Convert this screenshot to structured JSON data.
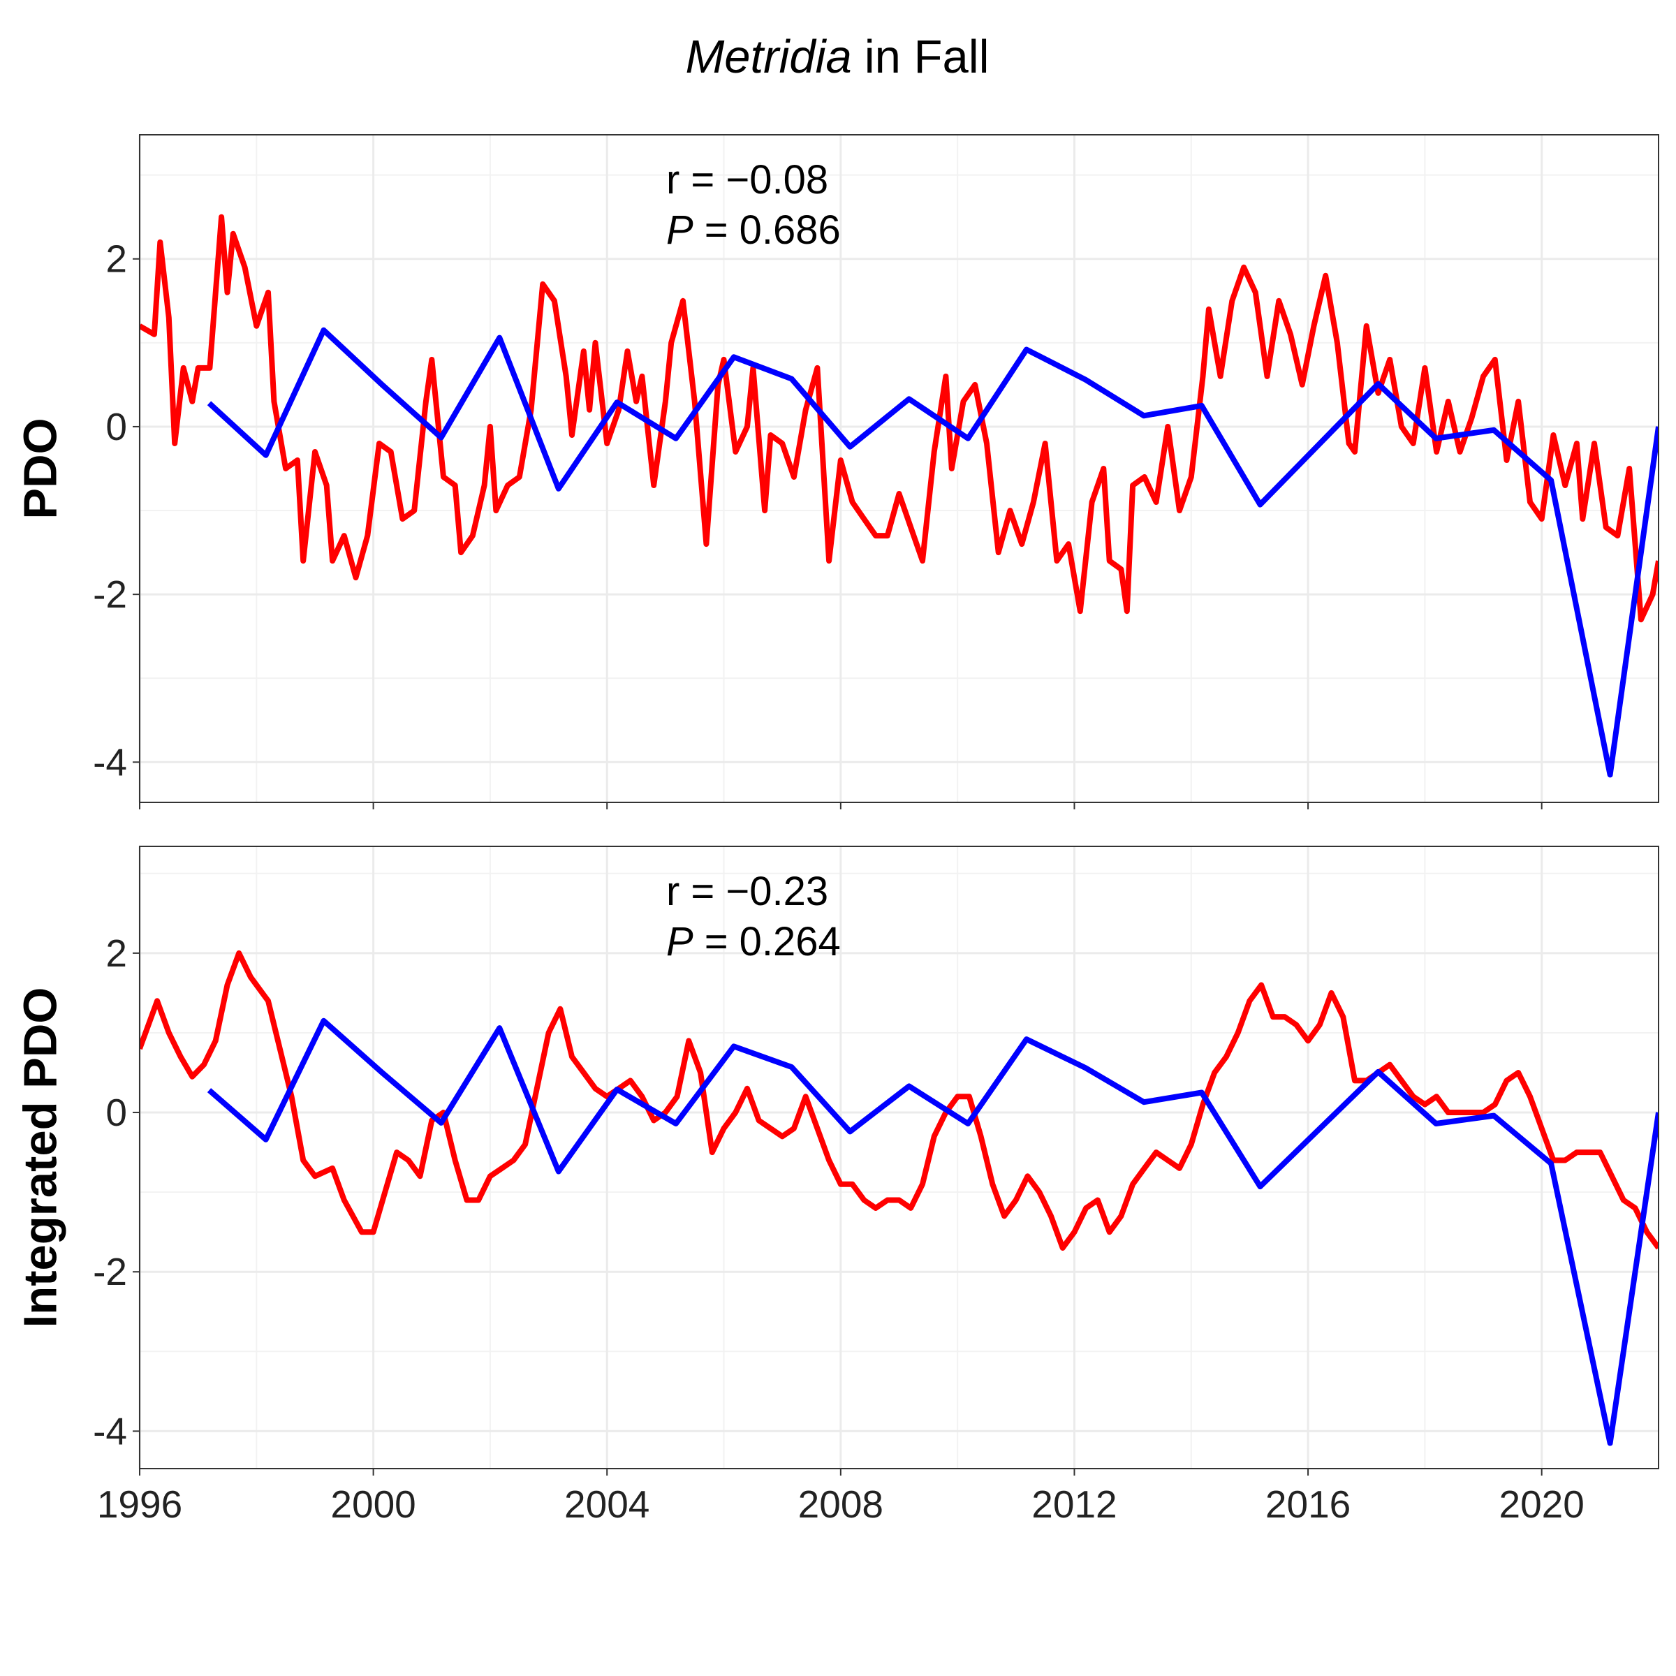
{
  "title": {
    "italic": "Metridia",
    "rest": "in Fall"
  },
  "chart_data": [
    {
      "type": "line",
      "ylabel": "PDO",
      "annotation": {
        "r": "r = −0.08",
        "p_symbol": "P",
        "p_text": "= 0.686"
      },
      "xlim": [
        1996,
        2022
      ],
      "xticks": [
        1996,
        2000,
        2004,
        2008,
        2012,
        2016,
        2020
      ],
      "xminor": [
        1998,
        2002,
        2006,
        2010,
        2014,
        2018
      ],
      "show_xtick_labels": false,
      "ylim": [
        -4.48,
        3.48
      ],
      "yticks": [
        -4,
        -2,
        0,
        2
      ],
      "yminor": [
        -3,
        -1,
        1,
        3
      ],
      "grid": true,
      "series": [
        {
          "color": "#ff0000",
          "x": [
            1996.0,
            1996.25,
            1996.35,
            1996.5,
            1996.6,
            1996.75,
            1996.9,
            1997.0,
            1997.2,
            1997.4,
            1997.5,
            1997.6,
            1997.8,
            1998.0,
            1998.2,
            1998.3,
            1998.5,
            1998.7,
            1998.8,
            1999.0,
            1999.2,
            1999.3,
            1999.5,
            1999.7,
            1999.9,
            2000.1,
            2000.3,
            2000.5,
            2000.7,
            2000.9,
            2001.0,
            2001.2,
            2001.4,
            2001.5,
            2001.7,
            2001.9,
            2002.0,
            2002.1,
            2002.3,
            2002.5,
            2002.7,
            2002.9,
            2003.1,
            2003.3,
            2003.4,
            2003.6,
            2003.7,
            2003.8,
            2004.0,
            2004.2,
            2004.35,
            2004.5,
            2004.6,
            2004.8,
            2005.0,
            2005.1,
            2005.3,
            2005.5,
            2005.7,
            2005.9,
            2006.0,
            2006.2,
            2006.4,
            2006.5,
            2006.7,
            2006.8,
            2007.0,
            2007.2,
            2007.4,
            2007.6,
            2007.8,
            2008.0,
            2008.2,
            2008.4,
            2008.6,
            2008.8,
            2009.0,
            2009.2,
            2009.4,
            2009.6,
            2009.8,
            2009.9,
            2010.1,
            2010.3,
            2010.5,
            2010.7,
            2010.9,
            2011.1,
            2011.3,
            2011.5,
            2011.7,
            2011.9,
            2012.1,
            2012.3,
            2012.5,
            2012.6,
            2012.8,
            2012.9,
            2013.0,
            2013.2,
            2013.4,
            2013.6,
            2013.8,
            2014.0,
            2014.2,
            2014.3,
            2014.5,
            2014.7,
            2014.9,
            2015.1,
            2015.3,
            2015.5,
            2015.7,
            2015.9,
            2016.1,
            2016.3,
            2016.5,
            2016.7,
            2016.8,
            2017.0,
            2017.2,
            2017.4,
            2017.6,
            2017.8,
            2018.0,
            2018.2,
            2018.4,
            2018.6,
            2018.8,
            2019.0,
            2019.2,
            2019.4,
            2019.6,
            2019.8,
            2020.0,
            2020.2,
            2020.4,
            2020.6,
            2020.7,
            2020.9,
            2021.1,
            2021.3,
            2021.5,
            2021.7,
            2021.9,
            2022.0
          ],
          "values": [
            1.2,
            1.1,
            2.2,
            1.3,
            -0.2,
            0.7,
            0.3,
            0.7,
            0.7,
            2.5,
            1.6,
            2.3,
            1.9,
            1.2,
            1.6,
            0.3,
            -0.5,
            -0.4,
            -1.6,
            -0.3,
            -0.7,
            -1.6,
            -1.3,
            -1.8,
            -1.3,
            -0.2,
            -0.3,
            -1.1,
            -1.0,
            0.3,
            0.8,
            -0.6,
            -0.7,
            -1.5,
            -1.3,
            -0.7,
            0.0,
            -1.0,
            -0.7,
            -0.6,
            0.2,
            1.7,
            1.5,
            0.6,
            -0.1,
            0.9,
            0.2,
            1.0,
            -0.2,
            0.2,
            0.9,
            0.3,
            0.6,
            -0.7,
            0.3,
            1.0,
            1.5,
            0.3,
            -1.4,
            0.5,
            0.8,
            -0.3,
            0.0,
            0.7,
            -1.0,
            -0.1,
            -0.2,
            -0.6,
            0.2,
            0.7,
            -1.6,
            -0.4,
            -0.9,
            -1.1,
            -1.3,
            -1.3,
            -0.8,
            -1.2,
            -1.6,
            -0.3,
            0.6,
            -0.5,
            0.3,
            0.5,
            -0.2,
            -1.5,
            -1.0,
            -1.4,
            -0.9,
            -0.2,
            -1.6,
            -1.4,
            -2.2,
            -0.9,
            -0.5,
            -1.6,
            -1.7,
            -2.2,
            -0.7,
            -0.6,
            -0.9,
            0.0,
            -1.0,
            -0.6,
            0.6,
            1.4,
            0.6,
            1.5,
            1.9,
            1.6,
            0.6,
            1.5,
            1.1,
            0.5,
            1.2,
            1.8,
            1.0,
            -0.2,
            -0.3,
            1.2,
            0.4,
            0.8,
            0.0,
            -0.2,
            0.7,
            -0.3,
            0.3,
            -0.3,
            0.1,
            0.6,
            0.8,
            -0.4,
            0.3,
            -0.9,
            -1.1,
            -0.1,
            -0.7,
            -0.2,
            -1.1,
            -0.2,
            -1.2,
            -1.3,
            -0.5,
            -2.3,
            -2.0,
            -1.6
          ]
        },
        {
          "color": "#0000ff",
          "x": [
            1997.19,
            1998.16,
            1999.15,
            2000.15,
            2001.16,
            2002.16,
            2003.17,
            2004.17,
            2005.18,
            2006.17,
            2007.16,
            2008.16,
            2009.17,
            2010.18,
            2011.18,
            2012.19,
            2013.19,
            2014.18,
            2015.18,
            2017.2,
            2018.19,
            2019.18,
            2020.16,
            2021.17,
            2022.0
          ],
          "values": [
            0.28,
            -0.34,
            1.15,
            0.5,
            -0.13,
            1.06,
            -0.74,
            0.29,
            -0.14,
            0.83,
            0.57,
            -0.24,
            0.33,
            -0.14,
            0.92,
            0.56,
            0.13,
            0.25,
            -0.93,
            0.51,
            -0.14,
            -0.04,
            -0.64,
            -4.15,
            0.0
          ]
        }
      ]
    },
    {
      "type": "line",
      "ylabel": "Integrated PDO",
      "annotation": {
        "r": "r = −0.23",
        "p_symbol": "P",
        "p_text": "= 0.264"
      },
      "xlim": [
        1996,
        2022
      ],
      "xticks": [
        1996,
        2000,
        2004,
        2008,
        2012,
        2016,
        2020
      ],
      "xminor": [
        1998,
        2002,
        2006,
        2010,
        2014,
        2018
      ],
      "show_xtick_labels": true,
      "ylim": [
        -4.47,
        3.34
      ],
      "yticks": [
        -4,
        -2,
        0,
        2
      ],
      "yminor": [
        -3,
        -1,
        1,
        3
      ],
      "grid": true,
      "series": [
        {
          "color": "#ff0000",
          "x": [
            1996.0,
            1996.1,
            1996.3,
            1996.5,
            1996.7,
            1996.9,
            1997.1,
            1997.3,
            1997.5,
            1997.7,
            1997.9,
            1998.2,
            1998.4,
            1998.6,
            1998.8,
            1999.0,
            1999.3,
            1999.5,
            1999.8,
            2000.0,
            2000.2,
            2000.4,
            2000.6,
            2000.8,
            2001.0,
            2001.2,
            2001.4,
            2001.6,
            2001.8,
            2002.0,
            2002.2,
            2002.4,
            2002.6,
            2002.8,
            2003.0,
            2003.2,
            2003.4,
            2003.6,
            2003.8,
            2004.0,
            2004.2,
            2004.4,
            2004.6,
            2004.8,
            2005.0,
            2005.2,
            2005.4,
            2005.6,
            2005.8,
            2006.0,
            2006.2,
            2006.4,
            2006.6,
            2006.8,
            2007.0,
            2007.2,
            2007.4,
            2007.6,
            2007.8,
            2008.0,
            2008.2,
            2008.4,
            2008.6,
            2008.8,
            2009.0,
            2009.2,
            2009.4,
            2009.6,
            2009.8,
            2010.0,
            2010.2,
            2010.4,
            2010.6,
            2010.8,
            2011.0,
            2011.2,
            2011.4,
            2011.6,
            2011.8,
            2012.0,
            2012.2,
            2012.4,
            2012.6,
            2012.8,
            2013.0,
            2013.2,
            2013.4,
            2013.6,
            2013.8,
            2014.0,
            2014.2,
            2014.4,
            2014.6,
            2014.8,
            2015.0,
            2015.2,
            2015.4,
            2015.6,
            2015.8,
            2016.0,
            2016.2,
            2016.4,
            2016.6,
            2016.8,
            2017.0,
            2017.2,
            2017.4,
            2017.6,
            2017.8,
            2018.0,
            2018.2,
            2018.4,
            2018.6,
            2018.8,
            2019.0,
            2019.2,
            2019.4,
            2019.6,
            2019.8,
            2020.0,
            2020.2,
            2020.4,
            2020.6,
            2020.8,
            2021.0,
            2021.2,
            2021.4,
            2021.6,
            2021.8,
            2022.0
          ],
          "values": [
            0.8,
            1.0,
            1.4,
            1.0,
            0.7,
            0.45,
            0.6,
            0.9,
            1.6,
            2.0,
            1.7,
            1.4,
            0.8,
            0.2,
            -0.6,
            -0.8,
            -0.7,
            -1.1,
            -1.5,
            -1.5,
            -1.0,
            -0.5,
            -0.6,
            -0.8,
            -0.1,
            0.0,
            -0.6,
            -1.1,
            -1.1,
            -0.8,
            -0.7,
            -0.6,
            -0.4,
            0.3,
            1.0,
            1.3,
            0.7,
            0.5,
            0.3,
            0.2,
            0.3,
            0.4,
            0.2,
            -0.1,
            0.0,
            0.2,
            0.9,
            0.5,
            -0.5,
            -0.2,
            0.0,
            0.3,
            -0.1,
            -0.2,
            -0.3,
            -0.2,
            0.2,
            -0.2,
            -0.6,
            -0.9,
            -0.9,
            -1.1,
            -1.2,
            -1.1,
            -1.1,
            -1.2,
            -0.9,
            -0.3,
            0.0,
            0.2,
            0.2,
            -0.3,
            -0.9,
            -1.3,
            -1.1,
            -0.8,
            -1.0,
            -1.3,
            -1.7,
            -1.5,
            -1.2,
            -1.1,
            -1.5,
            -1.3,
            -0.9,
            -0.7,
            -0.5,
            -0.6,
            -0.7,
            -0.4,
            0.1,
            0.5,
            0.7,
            1.0,
            1.4,
            1.6,
            1.2,
            1.2,
            1.1,
            0.9,
            1.1,
            1.5,
            1.2,
            0.4,
            0.4,
            0.5,
            0.6,
            0.4,
            0.2,
            0.1,
            0.2,
            0.0,
            0.0,
            0.0,
            0.0,
            0.1,
            0.4,
            0.5,
            0.2,
            -0.2,
            -0.6,
            -0.6,
            -0.5,
            -0.5,
            -0.5,
            -0.8,
            -1.1,
            -1.2,
            -1.5,
            -1.7
          ]
        },
        {
          "color": "#0000ff",
          "x": [
            1997.19,
            1998.16,
            1999.15,
            2000.15,
            2001.16,
            2002.16,
            2003.17,
            2004.17,
            2005.18,
            2006.17,
            2007.16,
            2008.16,
            2009.17,
            2010.18,
            2011.18,
            2012.19,
            2013.19,
            2014.18,
            2015.18,
            2017.2,
            2018.19,
            2019.18,
            2020.16,
            2021.17,
            2022.0
          ],
          "values": [
            0.28,
            -0.34,
            1.15,
            0.5,
            -0.13,
            1.06,
            -0.74,
            0.29,
            -0.14,
            0.83,
            0.57,
            -0.24,
            0.33,
            -0.14,
            0.92,
            0.56,
            0.13,
            0.25,
            -0.93,
            0.51,
            -0.14,
            -0.04,
            -0.64,
            -4.15,
            0.0
          ]
        }
      ]
    }
  ]
}
